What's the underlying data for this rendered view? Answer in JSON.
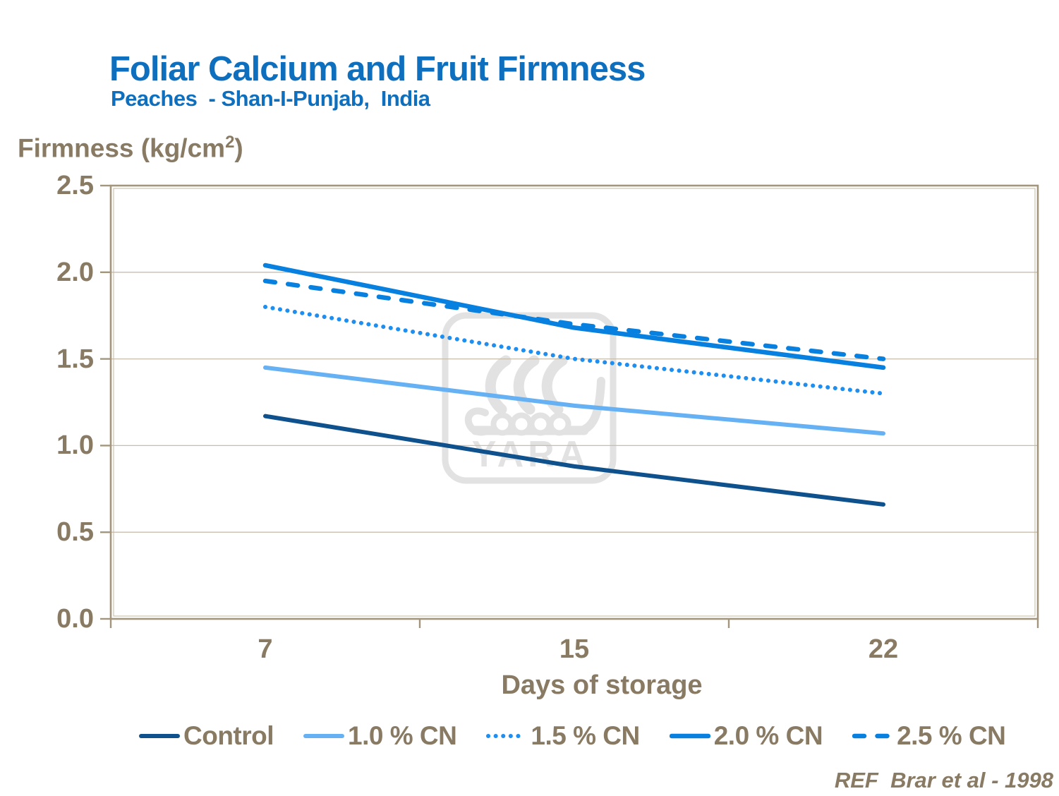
{
  "header": {
    "title": "Foliar Calcium and Fruit Firmness",
    "subtitle": "Peaches  - Shan-I-Punjab,  India"
  },
  "y_axis": {
    "label_pre": "Firmness (kg/cm",
    "label_sup": "2",
    "label_post": ")",
    "tick_labels": [
      "0.0",
      "0.5",
      "1.0",
      "1.5",
      "2.0",
      "2.5"
    ]
  },
  "x_axis": {
    "label": "Days of storage",
    "tick_labels": [
      "7",
      "15",
      "22"
    ]
  },
  "footer": {
    "reference": "REF  Brar et al - 1998"
  },
  "watermark": {
    "text": "YARA",
    "color": "#E2E2E2"
  },
  "colors": {
    "title_blue": "#0D6FBE",
    "text_tan": "#897A63",
    "grid": "#C8BEAD",
    "axis_border": "#A3967D",
    "axis_border_inner": "#C3B8A2",
    "background": "#FFFFFF"
  },
  "chart_data": {
    "type": "line",
    "title": "Foliar Calcium and Fruit Firmness",
    "subtitle": "Peaches - Shan-I-Punjab, India",
    "categories": [
      "7",
      "15",
      "22"
    ],
    "xlabel": "Days of storage",
    "ylabel": "Firmness (kg/cm2)",
    "ylim": [
      0,
      2.5
    ],
    "yticks": [
      0,
      0.5,
      1.0,
      1.5,
      2.0,
      2.5
    ],
    "grid": "horizontal",
    "legend_position": "bottom",
    "series": [
      {
        "name": "Control",
        "values": [
          1.17,
          0.88,
          0.66
        ],
        "color": "#0F518C",
        "style": "solid",
        "width": 6
      },
      {
        "name": "1.0 % CN",
        "values": [
          1.45,
          1.23,
          1.07
        ],
        "color": "#66B1F4",
        "style": "solid",
        "width": 6
      },
      {
        "name": "1.5 % CN",
        "values": [
          1.8,
          1.5,
          1.3
        ],
        "color": "#1E8FF0",
        "style": "dotted",
        "width": 6
      },
      {
        "name": "2.0 % CN",
        "values": [
          2.04,
          1.68,
          1.45
        ],
        "color": "#0780E0",
        "style": "solid",
        "width": 6.5
      },
      {
        "name": "2.5 % CN",
        "values": [
          1.95,
          1.7,
          1.5
        ],
        "color": "#0780E0",
        "style": "dashed",
        "width": 6.5
      }
    ],
    "draw_order": [
      0,
      1,
      2,
      4,
      3
    ]
  }
}
